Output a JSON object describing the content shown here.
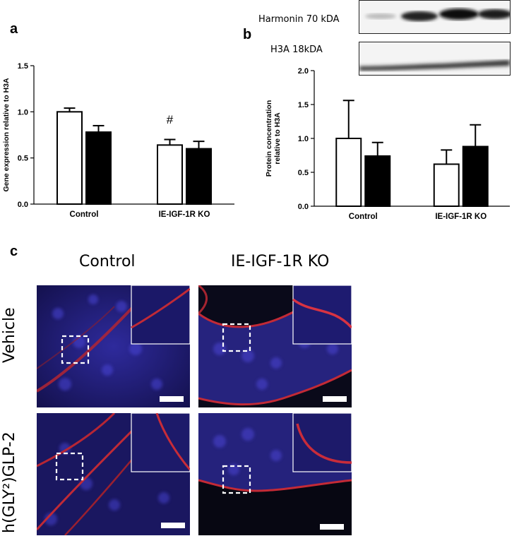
{
  "panels": {
    "a": "a",
    "b": "b",
    "c": "c"
  },
  "blot": {
    "harmonin_label": "Harmonin 70 kDA",
    "h3a_label": "H3A 18kDA"
  },
  "chart_data": [
    {
      "type": "bar",
      "panel": "a",
      "title": "",
      "xlabel": "",
      "ylabel": "Gene expression relative to H3A",
      "categories": [
        "Control",
        "IE-IGF-1R KO"
      ],
      "ylim": [
        0,
        1.5
      ],
      "yticks": [
        "0.0",
        "0.5",
        "1.0",
        "1.5"
      ],
      "series": [
        {
          "fill": "#ffffff",
          "values": [
            1.0,
            0.64
          ],
          "errors": [
            0.04,
            0.06
          ]
        },
        {
          "fill": "#000000",
          "values": [
            0.78,
            0.6
          ],
          "errors": [
            0.07,
            0.08
          ]
        }
      ],
      "annotations": [
        {
          "text": "#",
          "category": 1,
          "series": 0,
          "y": 0.92
        }
      ]
    },
    {
      "type": "bar",
      "panel": "b",
      "title": "",
      "xlabel": "",
      "ylabel": "Protein concentration relative to H3A",
      "categories": [
        "Control",
        "IE-IGF-1R KO"
      ],
      "ylim": [
        0,
        2.0
      ],
      "yticks": [
        "0.0",
        "0.5",
        "1.0",
        "1.5",
        "2.0"
      ],
      "series": [
        {
          "fill": "#ffffff",
          "values": [
            1.0,
            0.62
          ],
          "errors": [
            0.56,
            0.21
          ]
        },
        {
          "fill": "#000000",
          "values": [
            0.74,
            0.88
          ],
          "errors": [
            0.2,
            0.32
          ]
        }
      ],
      "annotations": []
    }
  ],
  "micrographs": {
    "columns": [
      "Control",
      "IE-IGF-1R KO"
    ],
    "rows": [
      "Vehicle",
      "h(GLY²)GLP-2"
    ]
  }
}
